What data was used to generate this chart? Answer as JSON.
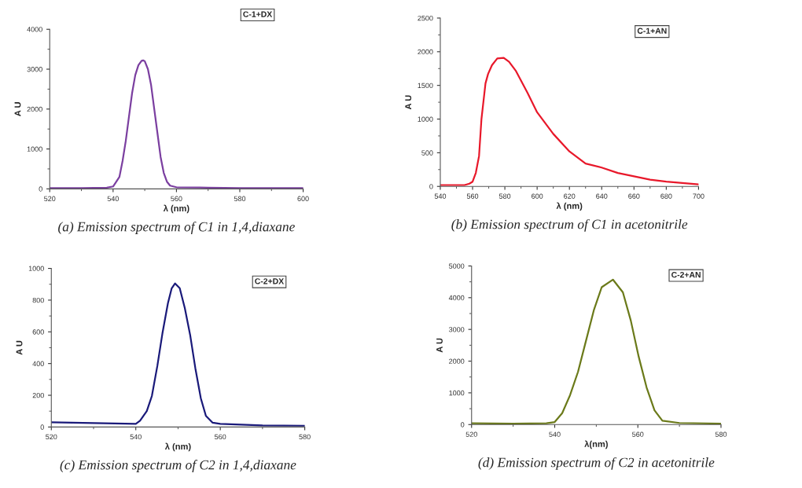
{
  "chart_data": [
    {
      "type": "line",
      "xlabel": "λ (nm)",
      "ylabel": "A U",
      "annotations": [
        "C-1+DX",
        "(a) Emission spectrum of C1 in 1,4,diaxane"
      ],
      "x": [
        520,
        530,
        538,
        540,
        542,
        543,
        544,
        545,
        546,
        547,
        548,
        549,
        549.5,
        550,
        551,
        552,
        553,
        554,
        555,
        556,
        557,
        558,
        560,
        570,
        580,
        600
      ],
      "series": [
        {
          "color": "#7b3fa0",
          "values": [
            20,
            20,
            30,
            60,
            300,
            700,
            1200,
            1800,
            2400,
            2850,
            3100,
            3210,
            3220,
            3200,
            3000,
            2600,
            2000,
            1400,
            800,
            400,
            180,
            80,
            40,
            30,
            20,
            20
          ]
        }
      ],
      "xlim": [
        520,
        600
      ],
      "xticks": [
        520,
        540,
        560,
        580,
        600
      ],
      "ylim": [
        0,
        4000
      ],
      "yticks": [
        0,
        1000,
        2000,
        3000,
        4000
      ],
      "grid": false
    },
    {
      "type": "line",
      "xlabel": "λ (nm)",
      "ylabel": "A U",
      "annotations": [
        "C-1+AN",
        "(b) Emission spectrum of C1 in acetonitrile"
      ],
      "x": [
        540,
        550,
        555,
        558,
        560,
        562,
        564,
        565.5,
        568,
        569.6,
        572,
        575.3,
        579.3,
        582.6,
        586.7,
        594,
        600,
        610,
        620,
        630,
        640,
        650,
        660,
        670,
        680,
        690,
        700
      ],
      "series": [
        {
          "color": "#e8182a",
          "values": [
            20,
            20,
            20,
            40,
            70,
            200,
            450,
            1000,
            1530,
            1670,
            1800,
            1900,
            1910,
            1850,
            1720,
            1390,
            1100,
            780,
            520,
            340,
            280,
            200,
            150,
            100,
            70,
            50,
            30
          ]
        }
      ],
      "xlim": [
        540,
        700
      ],
      "xticks": [
        540,
        560,
        580,
        600,
        620,
        640,
        660,
        680,
        700
      ],
      "ylim": [
        0,
        2500
      ],
      "yticks": [
        0,
        500,
        1000,
        1500,
        2000,
        2500
      ],
      "grid": false
    },
    {
      "type": "line",
      "xlabel": "λ (nm)",
      "ylabel": "A U",
      "annotations": [
        "C-2+DX",
        "(c) Emission spectrum of C2 in 1,4,diaxane"
      ],
      "x": [
        520,
        530,
        540,
        541,
        542.6,
        543.8,
        545.1,
        546.3,
        547.6,
        548.5,
        549.3,
        550.4,
        551.6,
        552.9,
        554.1,
        555.4,
        556.6,
        558.2,
        560,
        570,
        580
      ],
      "series": [
        {
          "color": "#1a1a7a",
          "values": [
            30,
            25,
            20,
            40,
            100,
            195,
            385,
            590,
            780,
            875,
            905,
            875,
            750,
            575,
            370,
            180,
            70,
            27,
            20,
            10,
            8
          ]
        }
      ],
      "xlim": [
        520,
        580
      ],
      "xticks": [
        520,
        540,
        560,
        580
      ],
      "ylim": [
        0,
        1000
      ],
      "yticks": [
        0,
        200,
        400,
        600,
        800,
        1000
      ],
      "grid": false
    },
    {
      "type": "line",
      "xlabel": "λ(nm)",
      "ylabel": "A U",
      "annotations": [
        "C-2+AN",
        "(d) Emission spectrum of C2 in acetonitrile"
      ],
      "x": [
        520,
        530,
        538,
        540,
        541.8,
        543.7,
        545.6,
        547.5,
        549.4,
        551.3,
        554,
        556.4,
        558.3,
        560.2,
        562.1,
        564,
        565.9,
        570,
        580
      ],
      "series": [
        {
          "color": "#6b7a1a",
          "values": [
            40,
            30,
            40,
            80,
            360,
            930,
            1660,
            2630,
            3600,
            4330,
            4570,
            4170,
            3280,
            2140,
            1170,
            450,
            120,
            50,
            30
          ]
        }
      ],
      "xlim": [
        520,
        580
      ],
      "xticks": [
        520,
        540,
        560,
        580
      ],
      "ylim": [
        0,
        5000
      ],
      "yticks": [
        0,
        1000,
        2000,
        3000,
        4000,
        5000
      ],
      "grid": false
    }
  ]
}
